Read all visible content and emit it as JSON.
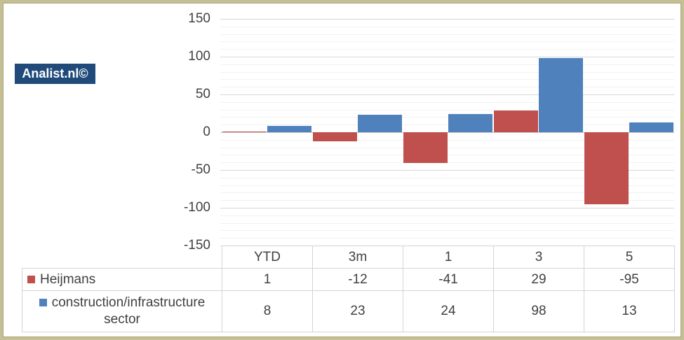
{
  "logo": {
    "text": "Analist.nl©",
    "bg_color": "#1F4A7A",
    "text_color": "#FFFFFF"
  },
  "chart_data": {
    "type": "bar",
    "title": "",
    "xlabel": "",
    "ylabel": "",
    "categories": [
      "YTD",
      "3m",
      "1",
      "3",
      "5"
    ],
    "series": [
      {
        "name": "Heijmans",
        "name_lines": [
          "Heijmans"
        ],
        "color": "#C0504D",
        "values": [
          1,
          -12,
          -41,
          29,
          -95
        ]
      },
      {
        "name": "construction/infrastructure sector",
        "name_lines": [
          "construction/infrastructure",
          "sector"
        ],
        "color": "#4F81BD",
        "values": [
          8,
          23,
          24,
          98,
          13
        ]
      }
    ],
    "ylim": [
      -150,
      150
    ],
    "y_ticks": [
      150,
      100,
      50,
      0,
      -50,
      -100,
      -150
    ],
    "minor_grid_step": 10,
    "major_grid_step": 50,
    "grid": true,
    "legend_position": "table-left"
  },
  "colors": {
    "grid_minor": "#f1f1f1",
    "grid_major": "#d6d6d6",
    "axis_zero": "#c9c9c9",
    "table_border": "#d4d4d4",
    "text": "#404040",
    "frame_border": "#c5bf94"
  }
}
